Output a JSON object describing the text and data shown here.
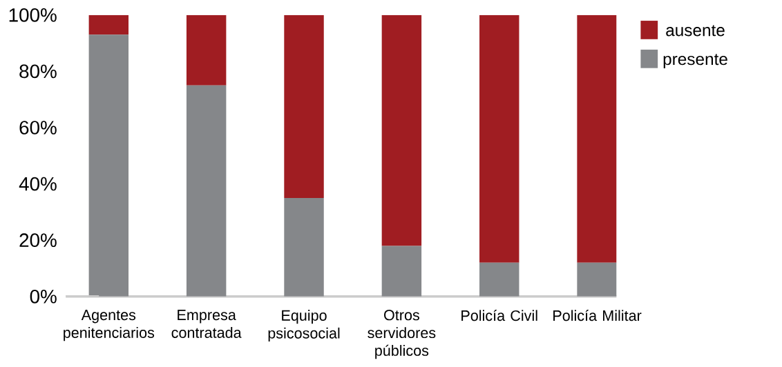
{
  "chart_data": {
    "type": "bar",
    "stacked": true,
    "categories": [
      "Agentes penitenciarios",
      "Empresa contratada",
      "Equipo psicosocial",
      "Otros servidores públicos",
      "Policía Civil",
      "Policía Militar"
    ],
    "series": [
      {
        "name": "presente",
        "color": "#85878a",
        "values": [
          93,
          75,
          35,
          18,
          12,
          12
        ]
      },
      {
        "name": "ausente",
        "color": "#a01d22",
        "values": [
          7,
          25,
          65,
          82,
          88,
          88
        ]
      }
    ],
    "ylim": [
      0,
      100
    ],
    "yticks": [
      {
        "value": 0,
        "label": "0%"
      },
      {
        "value": 20,
        "label": "20%"
      },
      {
        "value": 40,
        "label": "40%"
      },
      {
        "value": 60,
        "label": "60%"
      },
      {
        "value": 80,
        "label": "80%"
      },
      {
        "value": 100,
        "label": "100%"
      }
    ],
    "grid": false,
    "legend": "top right"
  }
}
